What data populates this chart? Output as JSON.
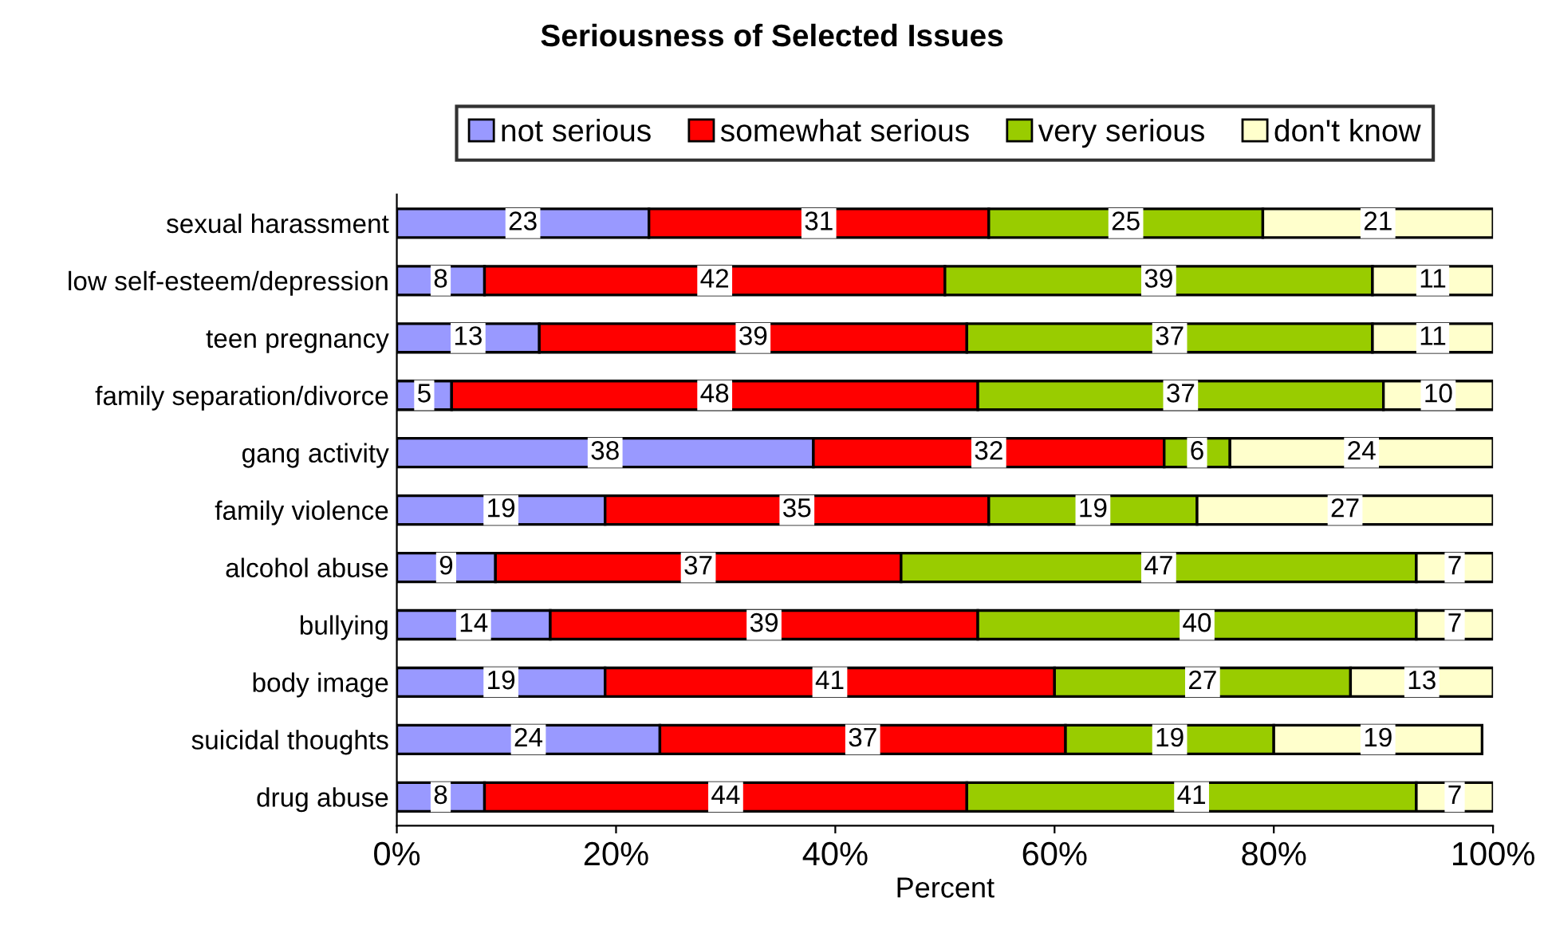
{
  "chart_data": {
    "type": "bar",
    "orientation": "horizontal",
    "stacked": true,
    "title": "Seriousness of Selected Issues",
    "xlabel": "Percent",
    "categories": [
      "sexual harassment",
      "low self-esteem/depression",
      "teen pregnancy",
      "family separation/divorce",
      "gang activity",
      "family violence",
      "alcohol abuse",
      "bullying",
      "body image",
      "suicidal thoughts",
      "drug abuse"
    ],
    "series": [
      {
        "name": "not serious",
        "color": "#9999ff",
        "values": [
          23,
          8,
          13,
          5,
          38,
          19,
          9,
          14,
          19,
          24,
          8
        ]
      },
      {
        "name": "somewhat serious",
        "color": "#ff0000",
        "values": [
          31,
          42,
          39,
          48,
          32,
          35,
          37,
          39,
          41,
          37,
          44
        ]
      },
      {
        "name": "very serious",
        "color": "#99cc00",
        "values": [
          25,
          39,
          37,
          37,
          6,
          19,
          47,
          40,
          27,
          19,
          41
        ]
      },
      {
        "name": "don't know",
        "color": "#ffffcc",
        "values": [
          21,
          11,
          11,
          10,
          24,
          27,
          7,
          7,
          13,
          19,
          7
        ]
      }
    ],
    "xlim": [
      0,
      100
    ],
    "xticks": [
      {
        "value": 0,
        "label": "0%"
      },
      {
        "value": 20,
        "label": "20%"
      },
      {
        "value": 40,
        "label": "40%"
      },
      {
        "value": 60,
        "label": "60%"
      },
      {
        "value": 80,
        "label": "80%"
      },
      {
        "value": 100,
        "label": "100%"
      }
    ],
    "data_labels": true,
    "legend": "top",
    "grid": false
  }
}
